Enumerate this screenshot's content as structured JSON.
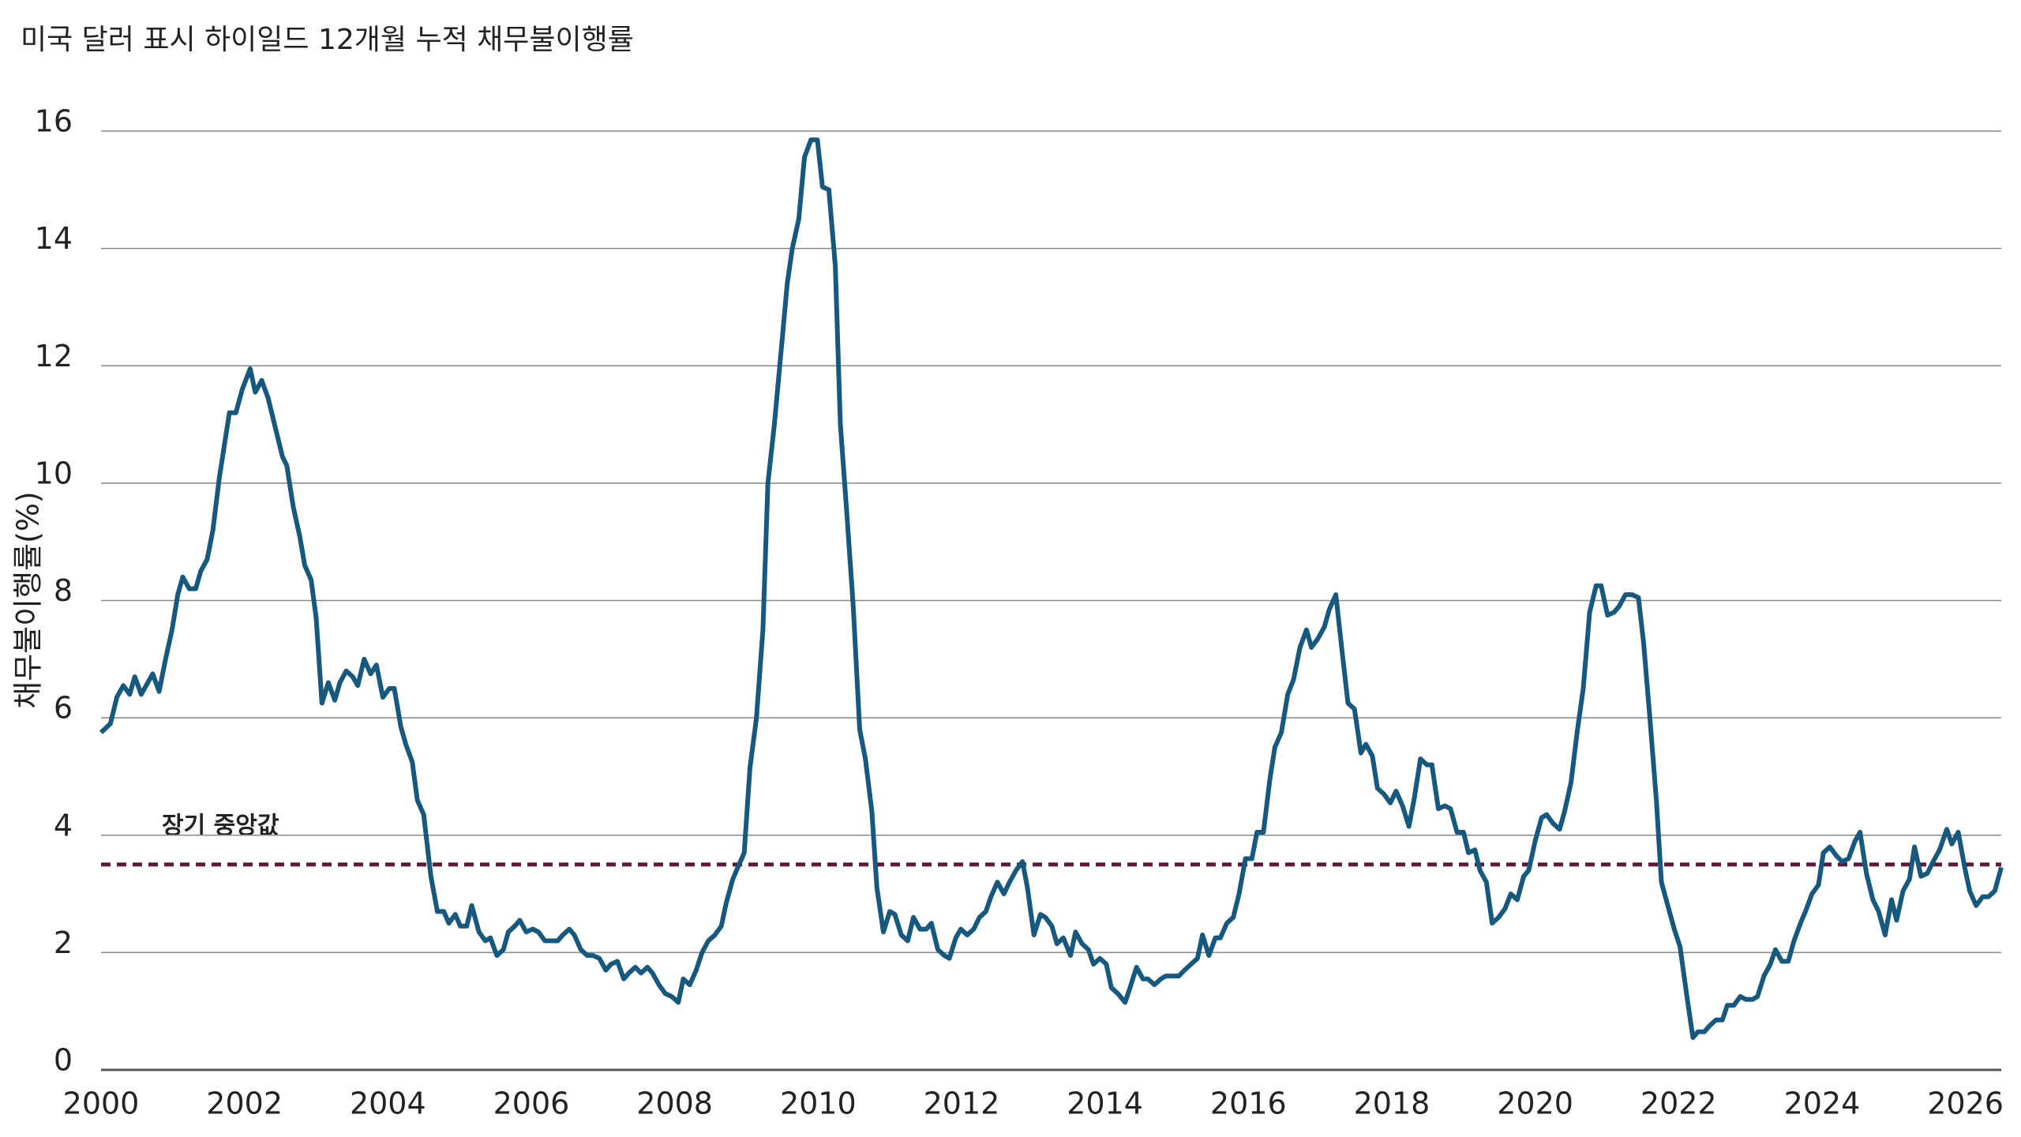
{
  "chart_data": {
    "type": "line",
    "title": "미국 달러 표시 하이일드 12개월 누적 채무불이행률",
    "y_label": "채무불이행률(%)",
    "xlim": [
      2000,
      2026.5
    ],
    "xticks": [
      2000,
      2002,
      2004,
      2006,
      2008,
      2010,
      2012,
      2014,
      2016,
      2018,
      2020,
      2022,
      2024,
      2026
    ],
    "ylim": [
      0,
      16
    ],
    "yticks": [
      0,
      2,
      4,
      6,
      8,
      10,
      12,
      14,
      16
    ],
    "grid": true,
    "median_line": {
      "value": 3.5,
      "label": "장기 중앙값",
      "color": "#5a1a3c"
    },
    "x": [
      2000.0,
      2000.13,
      2000.22,
      2000.31,
      2000.4,
      2000.47,
      2000.56,
      2000.72,
      2000.81,
      2000.9,
      2000.99,
      2001.07,
      2001.14,
      2001.23,
      2001.32,
      2001.39,
      2001.48,
      2001.56,
      2001.65,
      2001.79,
      2001.88,
      2001.97,
      2002.08,
      2002.15,
      2002.24,
      2002.33,
      2002.44,
      2002.53,
      2002.59,
      2002.68,
      2002.77,
      2002.84,
      2002.93,
      2003.0,
      2003.08,
      2003.17,
      2003.26,
      2003.33,
      2003.42,
      2003.51,
      2003.58,
      2003.67,
      2003.76,
      2003.84,
      2003.93,
      2004.02,
      2004.09,
      2004.18,
      2004.25,
      2004.34,
      2004.41,
      2004.5,
      2004.6,
      2004.69,
      2004.78,
      2004.85,
      2004.94,
      2005.01,
      2005.1,
      2005.17,
      2005.27,
      2005.36,
      2005.43,
      2005.52,
      2005.61,
      2005.68,
      2005.77,
      2005.84,
      2005.93,
      2006.02,
      2006.1,
      2006.19,
      2006.28,
      2006.37,
      2006.44,
      2006.53,
      2006.6,
      2006.69,
      2006.78,
      2006.86,
      2006.95,
      2007.04,
      2007.11,
      2007.2,
      2007.29,
      2007.36,
      2007.45,
      2007.53,
      2007.62,
      2007.69,
      2007.78,
      2007.87,
      2007.96,
      2008.05,
      2008.12,
      2008.21,
      2008.3,
      2008.38,
      2008.47,
      2008.56,
      2008.65,
      2008.72,
      2008.81,
      2008.88,
      2008.97,
      2009.05,
      2009.14,
      2009.23,
      2009.3,
      2009.39,
      2009.48,
      2009.57,
      2009.64,
      2009.73,
      2009.81,
      2009.9,
      2009.99,
      2010.06,
      2010.15,
      2010.24,
      2010.31,
      2010.4,
      2010.49,
      2010.58,
      2010.66,
      2010.75,
      2010.82,
      2010.91,
      2011.0,
      2011.07,
      2011.16,
      2011.25,
      2011.33,
      2011.42,
      2011.51,
      2011.58,
      2011.67,
      2011.76,
      2011.83,
      2011.92,
      2011.99,
      2012.08,
      2012.17,
      2012.25,
      2012.34,
      2012.41,
      2012.5,
      2012.59,
      2012.67,
      2012.76,
      2012.85,
      2012.92,
      2013.01,
      2013.1,
      2013.17,
      2013.26,
      2013.33,
      2013.42,
      2013.52,
      2013.59,
      2013.68,
      2013.77,
      2013.84,
      2013.93,
      2014.02,
      2014.09,
      2014.18,
      2014.28,
      2014.35,
      2014.44,
      2014.53,
      2014.6,
      2014.69,
      2014.78,
      2014.85,
      2014.94,
      2015.03,
      2015.11,
      2015.2,
      2015.29,
      2015.36,
      2015.45,
      2015.54,
      2015.61,
      2015.7,
      2015.79,
      2015.87,
      2015.96,
      2016.05,
      2016.12,
      2016.21,
      2016.3,
      2016.37,
      2016.46,
      2016.55,
      2016.63,
      2016.72,
      2016.81,
      2016.88,
      2016.97,
      2017.06,
      2017.13,
      2017.22,
      2017.31,
      2017.39,
      2017.48,
      2017.57,
      2017.64,
      2017.73,
      2017.8,
      2017.89,
      2017.98,
      2018.06,
      2018.15,
      2018.24,
      2018.31,
      2018.4,
      2018.49,
      2018.56,
      2018.65,
      2018.74,
      2018.82,
      2018.91,
      2019.0,
      2019.07,
      2019.16,
      2019.23,
      2019.32,
      2019.4,
      2019.49,
      2019.58,
      2019.66,
      2019.75,
      2019.84,
      2019.91,
      2020.0,
      2020.09,
      2020.16,
      2020.25,
      2020.34,
      2020.41,
      2020.5,
      2020.59,
      2020.67,
      2020.76,
      2020.85,
      2020.92,
      2021.01,
      2021.1,
      2021.17,
      2021.26,
      2021.35,
      2021.44,
      2021.51,
      2021.6,
      2021.69,
      2021.76,
      2021.85,
      2021.94,
      2022.02,
      2022.11,
      2022.2,
      2022.27,
      2022.36,
      2022.43,
      2022.52,
      2022.61,
      2022.68,
      2022.77,
      2022.86,
      2022.94,
      2023.03,
      2023.1,
      2023.19,
      2023.28,
      2023.35,
      2023.44,
      2023.53,
      2023.61,
      2023.7,
      2023.77,
      2023.86,
      2023.95,
      2024.02,
      2024.11,
      2024.2,
      2024.28,
      2024.37,
      2024.46,
      2024.53,
      2024.62,
      2024.71,
      2024.79,
      2024.88,
      2024.97,
      2025.04,
      2025.13,
      2025.22,
      2025.29,
      2025.38,
      2025.47,
      2025.55,
      2025.64,
      2025.74,
      2025.81,
      2025.9,
      2025.99,
      2026.06,
      2026.15,
      2026.24,
      2026.32,
      2026.41,
      2026.5
    ],
    "series": [
      {
        "color": "#17587f",
        "values": [
          5.75,
          5.9,
          6.35,
          6.55,
          6.4,
          6.7,
          6.4,
          6.75,
          6.45,
          7.0,
          7.5,
          8.1,
          8.4,
          8.2,
          8.2,
          8.5,
          8.7,
          9.2,
          10.1,
          11.2,
          11.2,
          11.6,
          11.95,
          11.55,
          11.75,
          11.45,
          10.9,
          10.45,
          10.3,
          9.6,
          9.1,
          8.6,
          8.35,
          7.7,
          6.25,
          6.6,
          6.3,
          6.6,
          6.8,
          6.7,
          6.55,
          7.0,
          6.75,
          6.9,
          6.35,
          6.5,
          6.5,
          5.85,
          5.55,
          5.25,
          4.6,
          4.35,
          3.3,
          2.7,
          2.7,
          2.5,
          2.65,
          2.45,
          2.45,
          2.8,
          2.35,
          2.2,
          2.25,
          1.95,
          2.05,
          2.35,
          2.45,
          2.55,
          2.35,
          2.4,
          2.35,
          2.2,
          2.2,
          2.2,
          2.3,
          2.4,
          2.3,
          2.05,
          1.95,
          1.95,
          1.9,
          1.7,
          1.8,
          1.85,
          1.55,
          1.65,
          1.75,
          1.65,
          1.75,
          1.65,
          1.45,
          1.3,
          1.25,
          1.15,
          1.55,
          1.45,
          1.7,
          2.0,
          2.2,
          2.3,
          2.45,
          2.85,
          3.25,
          3.45,
          3.7,
          5.15,
          6.0,
          7.5,
          10.0,
          11.0,
          12.2,
          13.4,
          14.0,
          14.5,
          15.55,
          15.85,
          15.85,
          15.05,
          15.0,
          13.7,
          11.0,
          9.5,
          7.9,
          5.8,
          5.3,
          4.4,
          3.1,
          2.35,
          2.7,
          2.65,
          2.3,
          2.2,
          2.6,
          2.4,
          2.4,
          2.5,
          2.05,
          1.95,
          1.9,
          2.25,
          2.4,
          2.3,
          2.4,
          2.6,
          2.7,
          2.95,
          3.2,
          3.0,
          3.2,
          3.4,
          3.55,
          3.1,
          2.3,
          2.65,
          2.6,
          2.45,
          2.15,
          2.25,
          1.95,
          2.35,
          2.15,
          2.05,
          1.8,
          1.9,
          1.8,
          1.4,
          1.3,
          1.15,
          1.4,
          1.75,
          1.55,
          1.55,
          1.45,
          1.55,
          1.6,
          1.6,
          1.6,
          1.7,
          1.8,
          1.9,
          2.3,
          1.95,
          2.25,
          2.25,
          2.5,
          2.6,
          3.0,
          3.6,
          3.6,
          4.05,
          4.05,
          4.95,
          5.5,
          5.75,
          6.4,
          6.65,
          7.2,
          7.5,
          7.2,
          7.35,
          7.55,
          7.85,
          8.1,
          7.1,
          6.25,
          6.15,
          5.4,
          5.55,
          5.35,
          4.8,
          4.7,
          4.55,
          4.75,
          4.5,
          4.15,
          4.6,
          5.3,
          5.2,
          5.2,
          4.45,
          4.5,
          4.45,
          4.05,
          4.05,
          3.7,
          3.75,
          3.4,
          3.2,
          2.5,
          2.6,
          2.75,
          3.0,
          2.9,
          3.3,
          3.4,
          3.9,
          4.3,
          4.35,
          4.2,
          4.1,
          4.4,
          4.9,
          5.8,
          6.5,
          7.8,
          8.25,
          8.25,
          7.75,
          7.8,
          7.9,
          8.1,
          8.1,
          8.05,
          7.3,
          6.0,
          4.6,
          3.2,
          2.8,
          2.4,
          2.1,
          1.3,
          0.55,
          0.65,
          0.65,
          0.75,
          0.85,
          0.85,
          1.1,
          1.1,
          1.25,
          1.2,
          1.2,
          1.25,
          1.6,
          1.8,
          2.05,
          1.85,
          1.85,
          2.2,
          2.5,
          2.7,
          3.0,
          3.15,
          3.7,
          3.8,
          3.65,
          3.55,
          3.6,
          3.9,
          4.05,
          3.35,
          2.9,
          2.7,
          2.3,
          2.9,
          2.55,
          3.05,
          3.25,
          3.8,
          3.3,
          3.35,
          3.55,
          3.75,
          4.1,
          3.85,
          4.05,
          3.45,
          3.05,
          2.8,
          2.95,
          2.95,
          3.05,
          3.45
        ]
      }
    ]
  }
}
